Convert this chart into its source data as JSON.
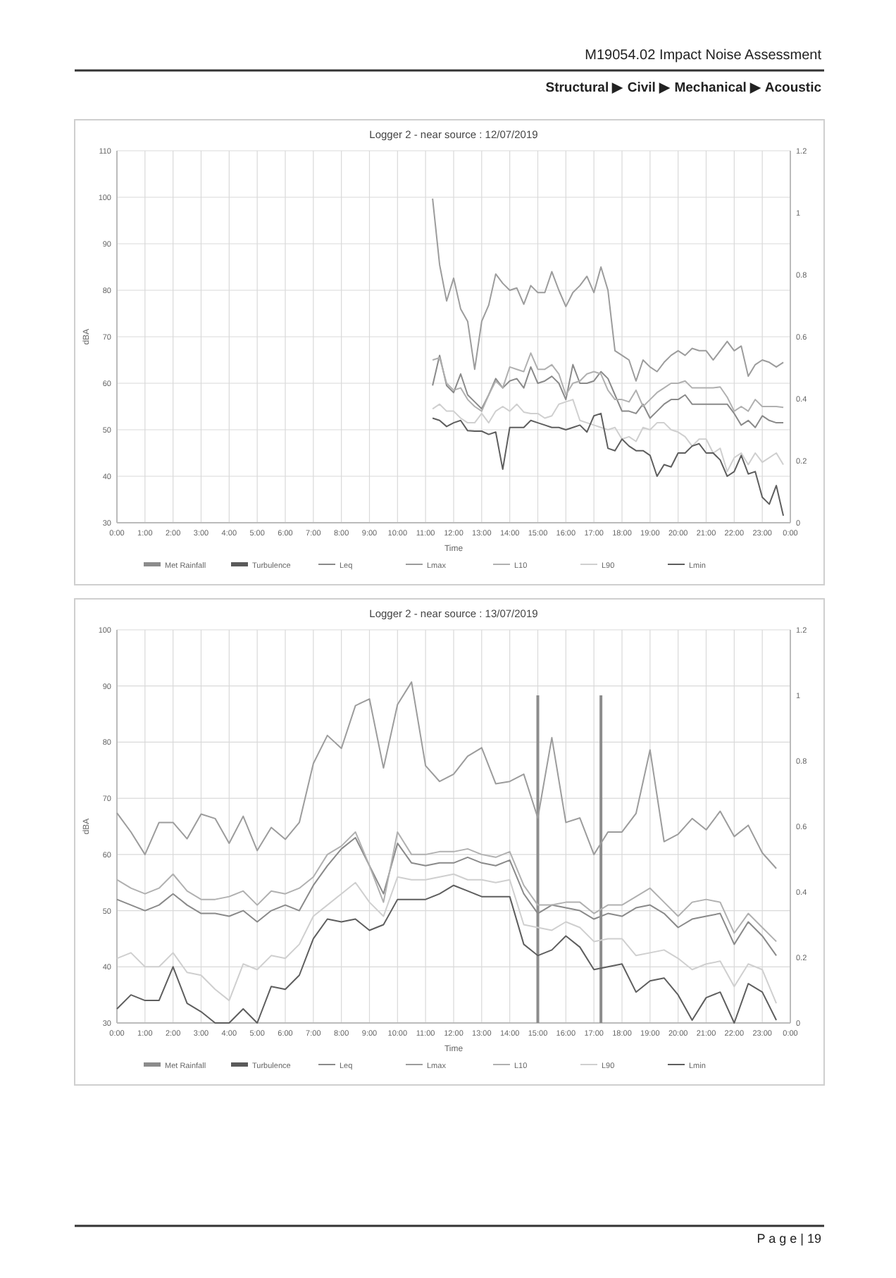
{
  "chart_data": [
    {
      "type": "line",
      "title": "Logger 2 - near source : 12/07/2019",
      "xlabel": "Time",
      "ylabel": "dBA",
      "annotations": [
        "M19054.02 Impact Noise Assessment",
        "Structural ▶ Civil ▶ Mechanical ▶ Acoustic"
      ],
      "x": [
        11.25,
        11.5,
        11.75,
        12,
        12.25,
        12.5,
        12.75,
        13,
        13.25,
        13.5,
        13.75,
        14,
        14.25,
        14.5,
        14.75,
        15,
        15.25,
        15.5,
        15.75,
        16,
        16.25,
        16.5,
        16.75,
        17,
        17.25,
        17.5,
        17.75,
        18,
        18.25,
        18.5,
        18.75,
        19,
        19.25,
        19.5,
        19.75,
        20,
        20.25,
        20.5,
        20.75,
        21,
        21.25,
        21.5,
        21.75,
        22,
        22.25,
        22.5,
        22.75,
        23,
        23.25,
        23.5,
        23.75
      ],
      "xlim": [
        0,
        24
      ],
      "xticks": [
        {
          "value": 0,
          "label": "0:00"
        },
        {
          "value": 1,
          "label": "1:00"
        },
        {
          "value": 2,
          "label": "2:00"
        },
        {
          "value": 3,
          "label": "3:00"
        },
        {
          "value": 4,
          "label": "4:00"
        },
        {
          "value": 5,
          "label": "5:00"
        },
        {
          "value": 6,
          "label": "6:00"
        },
        {
          "value": 7,
          "label": "7:00"
        },
        {
          "value": 8,
          "label": "8:00"
        },
        {
          "value": 9,
          "label": "9:00"
        },
        {
          "value": 10,
          "label": "10:00"
        },
        {
          "value": 11,
          "label": "11:00"
        },
        {
          "value": 12,
          "label": "12:00"
        },
        {
          "value": 13,
          "label": "13:00"
        },
        {
          "value": 14,
          "label": "14:00"
        },
        {
          "value": 15,
          "label": "15:00"
        },
        {
          "value": 16,
          "label": "16:00"
        },
        {
          "value": 17,
          "label": "17:00"
        },
        {
          "value": 18,
          "label": "18:00"
        },
        {
          "value": 19,
          "label": "19:00"
        },
        {
          "value": 20,
          "label": "20:00"
        },
        {
          "value": 21,
          "label": "21:00"
        },
        {
          "value": 22,
          "label": "22:00"
        },
        {
          "value": 23,
          "label": "23:00"
        },
        {
          "value": 24,
          "label": "0:00"
        }
      ],
      "ylim": [
        30,
        110
      ],
      "yticks": [
        30,
        40,
        50,
        60,
        70,
        80,
        90,
        100,
        110
      ],
      "y2lim": [
        0,
        1.2
      ],
      "y2ticks": [
        0,
        0.2,
        0.4,
        0.6,
        0.8,
        1,
        1.2
      ],
      "grid": true,
      "legend": "bottom",
      "series": [
        {
          "name": "Met Rainfall",
          "type": "bar",
          "axis": "y2",
          "color": "#8c8c8c",
          "values": [
            null,
            null,
            null,
            null,
            null,
            null,
            null,
            null,
            null,
            null,
            null,
            null,
            null,
            null,
            null,
            null,
            null,
            null,
            null,
            null,
            null,
            null,
            null,
            null,
            null,
            null,
            null,
            null,
            null,
            null,
            null,
            null,
            null,
            null,
            null,
            null,
            null,
            null,
            null,
            null,
            null,
            null,
            null,
            null,
            null,
            null,
            null,
            null,
            null,
            null,
            null
          ]
        },
        {
          "name": "Turbulence",
          "type": "bar",
          "axis": "y2",
          "color": "#5a5a5a",
          "values": [
            null,
            null,
            null,
            null,
            null,
            null,
            null,
            null,
            null,
            null,
            null,
            null,
            null,
            null,
            null,
            null,
            null,
            null,
            null,
            null,
            null,
            null,
            null,
            null,
            null,
            null,
            null,
            null,
            null,
            null,
            null,
            null,
            null,
            null,
            null,
            null,
            null,
            null,
            null,
            null,
            null,
            null,
            null,
            null,
            null,
            null,
            null,
            null,
            null,
            null,
            null
          ]
        },
        {
          "name": "Leq",
          "color": "#8a8a8a",
          "values": [
            59.5,
            66,
            59.5,
            58,
            62,
            57.5,
            56,
            54.5,
            57.5,
            61,
            59,
            60.5,
            61,
            59,
            63.5,
            60,
            60.5,
            61.5,
            60,
            56.5,
            64,
            60,
            60,
            60.5,
            62.5,
            61,
            57.5,
            54,
            54,
            53.5,
            55.5,
            52.5,
            54,
            55.5,
            56.5,
            56.5,
            57.5,
            55.5,
            55.5,
            55.5,
            55.5,
            55.5,
            55.5,
            53.5,
            51,
            52,
            50.5,
            53,
            52,
            51.5,
            51.5
          ]
        },
        {
          "name": "Lmax",
          "color": "#9c9c9c",
          "values": [
            99.7,
            85.5,
            77.7,
            82.6,
            76,
            73.3,
            63,
            73.3,
            76.8,
            83.5,
            81.5,
            80,
            80.5,
            77,
            81,
            79.5,
            79.5,
            84,
            80,
            76.5,
            79.5,
            81,
            83,
            79.5,
            85,
            80,
            67,
            66,
            65,
            60.5,
            65,
            63.5,
            62.5,
            64.5,
            66,
            67,
            66,
            67.5,
            67,
            67,
            65,
            67,
            69,
            67,
            68,
            61.5,
            64,
            65,
            64.5,
            63.5,
            64.5
          ]
        },
        {
          "name": "L10",
          "color": "#b0b0b0",
          "values": [
            65,
            65.5,
            60,
            58.5,
            59,
            56.5,
            55,
            54,
            57.5,
            60.5,
            59,
            63.5,
            63,
            62.5,
            66.5,
            63,
            63,
            64,
            62,
            57.5,
            60,
            60.5,
            62,
            62.5,
            62,
            58.5,
            56.5,
            56.5,
            56,
            58.5,
            55,
            56.5,
            58,
            59,
            60,
            60,
            60.5,
            59,
            59,
            59,
            59,
            59.2,
            57,
            54,
            55,
            54,
            56.5,
            55,
            55,
            55,
            54.8
          ]
        },
        {
          "name": "L90",
          "color": "#cfcfcf",
          "values": [
            54.5,
            55.5,
            54,
            54,
            52.5,
            51.5,
            51.5,
            53.5,
            51.5,
            54,
            55,
            54,
            55.5,
            53.8,
            53.5,
            53.5,
            52.5,
            53,
            55.5,
            56,
            56.5,
            52,
            51.5,
            51,
            50.5,
            50,
            50.5,
            48,
            48.5,
            47.5,
            50.5,
            50,
            51.5,
            51.5,
            50,
            49.5,
            48.5,
            46.5,
            48,
            48,
            45,
            46,
            41,
            44,
            45,
            42.5,
            45,
            43,
            44,
            45,
            42.5
          ]
        },
        {
          "name": "Lmin",
          "color": "#5e5e5e",
          "values": [
            52.5,
            52,
            50.7,
            51.5,
            52,
            49.8,
            49.7,
            49.7,
            49,
            49.5,
            41.5,
            50.5,
            50.5,
            50.5,
            52,
            51.5,
            51,
            50.5,
            50.5,
            50,
            50.5,
            51,
            49.5,
            53,
            53.5,
            46,
            45.5,
            48,
            46.5,
            45.5,
            45.5,
            44.5,
            40,
            42.5,
            42,
            45,
            45,
            46.5,
            47,
            45,
            45,
            43.5,
            40,
            41,
            44.5,
            40.5,
            41,
            35.5,
            34,
            38,
            31.5
          ]
        }
      ]
    },
    {
      "type": "line",
      "title": "Logger 2 - near source : 13/07/2019",
      "xlabel": "Time",
      "ylabel": "dBA",
      "annotations": [
        "P a g e | 19"
      ],
      "x": [
        0,
        0.5,
        1,
        1.5,
        2,
        2.5,
        3,
        3.5,
        4,
        4.5,
        5,
        5.5,
        6,
        6.5,
        7,
        7.5,
        8,
        8.5,
        9,
        9.5,
        10,
        10.5,
        11,
        11.5,
        12,
        12.5,
        13,
        13.5,
        14,
        14.5,
        15,
        15.5,
        16,
        16.5,
        17,
        17.5,
        18,
        18.5,
        19,
        19.5,
        20,
        20.5,
        21,
        21.5,
        22,
        22.5,
        23,
        23.5
      ],
      "xlim": [
        0,
        24
      ],
      "xticks": [
        {
          "value": 0,
          "label": "0:00"
        },
        {
          "value": 1,
          "label": "1:00"
        },
        {
          "value": 2,
          "label": "2:00"
        },
        {
          "value": 3,
          "label": "3:00"
        },
        {
          "value": 4,
          "label": "4:00"
        },
        {
          "value": 5,
          "label": "5:00"
        },
        {
          "value": 6,
          "label": "6:00"
        },
        {
          "value": 7,
          "label": "7:00"
        },
        {
          "value": 8,
          "label": "8:00"
        },
        {
          "value": 9,
          "label": "9:00"
        },
        {
          "value": 10,
          "label": "10:00"
        },
        {
          "value": 11,
          "label": "11:00"
        },
        {
          "value": 12,
          "label": "12:00"
        },
        {
          "value": 13,
          "label": "13:00"
        },
        {
          "value": 14,
          "label": "14:00"
        },
        {
          "value": 15,
          "label": "15:00"
        },
        {
          "value": 16,
          "label": "16:00"
        },
        {
          "value": 17,
          "label": "17:00"
        },
        {
          "value": 18,
          "label": "18:00"
        },
        {
          "value": 19,
          "label": "19:00"
        },
        {
          "value": 20,
          "label": "20:00"
        },
        {
          "value": 21,
          "label": "21:00"
        },
        {
          "value": 22,
          "label": "22:00"
        },
        {
          "value": 23,
          "label": "23:00"
        },
        {
          "value": 24,
          "label": "0:00"
        }
      ],
      "ylim": [
        30,
        100
      ],
      "yticks": [
        30,
        40,
        50,
        60,
        70,
        80,
        90,
        100
      ],
      "y2lim": [
        0,
        1.2
      ],
      "y2ticks": [
        0,
        0.2,
        0.4,
        0.6,
        0.8,
        1,
        1.2
      ],
      "grid": true,
      "legend": "bottom",
      "series": [
        {
          "name": "Met Rainfall",
          "type": "bar",
          "axis": "y2",
          "color": "#8c8c8c",
          "x": [
            15,
            17.25
          ],
          "values": [
            1,
            1
          ]
        },
        {
          "name": "Turbulence",
          "type": "bar",
          "axis": "y2",
          "color": "#5a5a5a",
          "values": [
            null,
            null,
            null,
            null,
            null,
            null,
            null,
            null,
            null,
            null,
            null,
            null,
            null,
            null,
            null,
            null,
            null,
            null,
            null,
            null,
            null,
            null,
            null,
            null,
            null,
            null,
            null,
            null,
            null,
            null,
            null,
            null,
            null,
            null,
            null,
            null,
            null,
            null,
            null,
            null,
            null,
            null,
            null,
            null,
            null,
            null,
            null,
            null
          ]
        },
        {
          "name": "Leq",
          "color": "#8a8a8a",
          "values": [
            52,
            51,
            50,
            51,
            53,
            51,
            49.5,
            49.5,
            49,
            50,
            48,
            50,
            51,
            50,
            54.5,
            58,
            61,
            63,
            58,
            53,
            62,
            58.5,
            58,
            58.5,
            58.5,
            59.5,
            58.5,
            58,
            59,
            53,
            49.5,
            51,
            50.5,
            50,
            48.5,
            49.5,
            49,
            50.5,
            51,
            49.5,
            47,
            48.5,
            49,
            49.5,
            44,
            48,
            45.5,
            42
          ]
        },
        {
          "name": "Lmax",
          "color": "#9c9c9c",
          "values": [
            67.4,
            64,
            60,
            65.7,
            65.7,
            62.8,
            67.2,
            66.4,
            62,
            66.8,
            60.7,
            64.8,
            62.7,
            65.7,
            76.2,
            81.2,
            78.9,
            86.5,
            87.7,
            75.4,
            86.7,
            90.7,
            75.8,
            73,
            74.3,
            77.5,
            79,
            72.6,
            73,
            74.3,
            66.5,
            80.8,
            65.7,
            66.5,
            60,
            64,
            64,
            67.3,
            78.6,
            62.3,
            63.6,
            66.4,
            64.4,
            67.7,
            63.2,
            65.2,
            60.3,
            57.5
          ]
        },
        {
          "name": "L10",
          "color": "#b0b0b0",
          "values": [
            55.5,
            54,
            53,
            54,
            56.5,
            53.5,
            52,
            52,
            52.5,
            53.5,
            51,
            53.5,
            53,
            54,
            56,
            60,
            61.5,
            64,
            58,
            51.5,
            64,
            60,
            60,
            60.5,
            60.5,
            61,
            60,
            59.5,
            60.5,
            54.5,
            51,
            51,
            51.5,
            51.5,
            49.5,
            51,
            51,
            52.5,
            54,
            51.5,
            49,
            51.5,
            52,
            51.5,
            46,
            49.5,
            47,
            44.5
          ]
        },
        {
          "name": "L90",
          "color": "#cfcfcf",
          "values": [
            41.5,
            42.5,
            40,
            40,
            42.5,
            39,
            38.5,
            36,
            34,
            40.5,
            39.5,
            42,
            41.5,
            44,
            49,
            51,
            53,
            55,
            51.5,
            49,
            56,
            55.5,
            55.5,
            56,
            56.5,
            55.5,
            55.5,
            55,
            55.5,
            47.5,
            47,
            46.5,
            48,
            47,
            44.5,
            45,
            45,
            42,
            42.5,
            43,
            41.5,
            39.5,
            40.5,
            41,
            36.5,
            40.5,
            39.5,
            33.5
          ]
        },
        {
          "name": "Lmin",
          "color": "#5e5e5e",
          "values": [
            32.5,
            35,
            34,
            34,
            40,
            33.5,
            32,
            30,
            30,
            32.5,
            30,
            36.5,
            36,
            38.5,
            45,
            48.5,
            48,
            48.5,
            46.5,
            47.5,
            52,
            52,
            52,
            53,
            54.5,
            53.5,
            52.5,
            52.5,
            52.5,
            44,
            42,
            43,
            45.5,
            43.5,
            39.5,
            40,
            40.5,
            35.5,
            37.5,
            38,
            35,
            30.5,
            34.5,
            35.5,
            30,
            37,
            35.5,
            30.5
          ]
        }
      ]
    }
  ]
}
